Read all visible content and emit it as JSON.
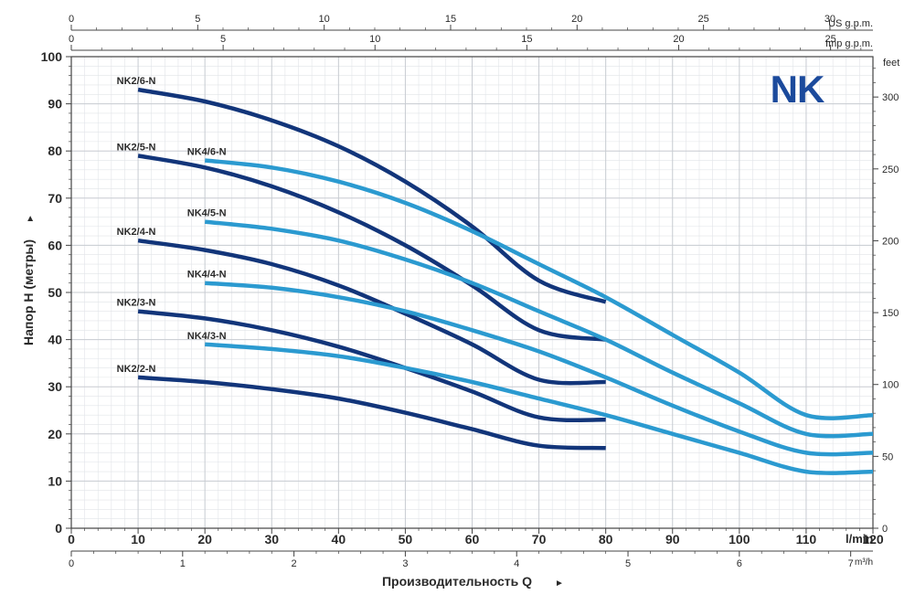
{
  "colors": {
    "dark": "#12357a",
    "light": "#2b9ad0",
    "grid": "#c8ccd2",
    "axis": "#444444",
    "logo": "#1b4a9c"
  },
  "logo": {
    "text": "NK"
  },
  "units": {
    "us_gpm": "US g.p.m.",
    "imp_gpm": "Imp g.p.m.",
    "feet": "feet",
    "lmin": "l/min",
    "m3h": "m³/h"
  },
  "ylabel": "Напор H (метры)",
  "xlabel": "Производительность Q",
  "arrow": "►",
  "top_us_ticks": [
    "0",
    "5",
    "10",
    "15",
    "20",
    "25",
    "30"
  ],
  "top_imp_ticks": [
    "0",
    "5",
    "10",
    "15",
    "20",
    "25"
  ],
  "right_feet_ticks": [
    "0",
    "50",
    "100",
    "150",
    "200",
    "250",
    "300"
  ],
  "m3h_ticks": [
    "0",
    "1",
    "2",
    "3",
    "4",
    "5",
    "6",
    "7"
  ],
  "chart_data": {
    "type": "line",
    "title": "",
    "xlabel": "Производительность Q",
    "ylabel": "Напор H (метры)",
    "x_unit": "l/min",
    "y_unit": "m",
    "xlim": [
      0,
      120
    ],
    "ylim": [
      0,
      100
    ],
    "grid": true,
    "x_ticks": [
      0,
      10,
      20,
      30,
      40,
      50,
      60,
      70,
      80,
      90,
      100,
      110,
      120
    ],
    "y_ticks": [
      0,
      10,
      20,
      30,
      40,
      50,
      60,
      70,
      80,
      90,
      100
    ],
    "series": [
      {
        "name": "NK2/6-N",
        "family": "dark",
        "x": [
          10,
          20,
          30,
          40,
          50,
          60,
          70,
          80
        ],
        "y": [
          93,
          90.5,
          86.5,
          81,
          73.5,
          64,
          52.5,
          48
        ]
      },
      {
        "name": "NK2/5-N",
        "family": "dark",
        "x": [
          10,
          20,
          30,
          40,
          50,
          60,
          70,
          80
        ],
        "y": [
          79,
          76.5,
          72.5,
          67,
          60,
          51.5,
          42,
          40
        ]
      },
      {
        "name": "NK2/4-N",
        "family": "dark",
        "x": [
          10,
          20,
          30,
          40,
          50,
          60,
          70,
          80
        ],
        "y": [
          61,
          59,
          56,
          51.5,
          45.5,
          39,
          31.5,
          31
        ]
      },
      {
        "name": "NK2/3-N",
        "family": "dark",
        "x": [
          10,
          20,
          30,
          40,
          50,
          60,
          70,
          80
        ],
        "y": [
          46,
          44.5,
          42,
          38.5,
          34,
          29,
          23.5,
          23
        ]
      },
      {
        "name": "NK2/2-N",
        "family": "dark",
        "x": [
          10,
          20,
          30,
          40,
          50,
          60,
          70,
          80
        ],
        "y": [
          32,
          31,
          29.5,
          27.5,
          24.5,
          21,
          17.5,
          17
        ]
      },
      {
        "name": "NK4/6-N",
        "family": "light",
        "x": [
          20,
          30,
          40,
          50,
          60,
          70,
          80,
          90,
          100,
          110,
          120
        ],
        "y": [
          78,
          76.5,
          73.5,
          69,
          63,
          56,
          49,
          41,
          33,
          24,
          24
        ]
      },
      {
        "name": "NK4/5-N",
        "family": "light",
        "x": [
          20,
          30,
          40,
          50,
          60,
          70,
          80,
          90,
          100,
          110,
          120
        ],
        "y": [
          65,
          63.5,
          61,
          57,
          52,
          46,
          40,
          33,
          26.5,
          20,
          20
        ]
      },
      {
        "name": "NK4/4-N",
        "family": "light",
        "x": [
          20,
          30,
          40,
          50,
          60,
          70,
          80,
          90,
          100,
          110,
          120
        ],
        "y": [
          52,
          51,
          49,
          46,
          42,
          37.5,
          32,
          26,
          20.5,
          16,
          16
        ]
      },
      {
        "name": "NK4/3-N",
        "family": "light",
        "x": [
          20,
          30,
          40,
          50,
          60,
          70,
          80,
          90,
          100,
          110,
          120
        ],
        "y": [
          39,
          38,
          36.5,
          34,
          31,
          27.5,
          24,
          20,
          16,
          12,
          12
        ]
      }
    ]
  }
}
